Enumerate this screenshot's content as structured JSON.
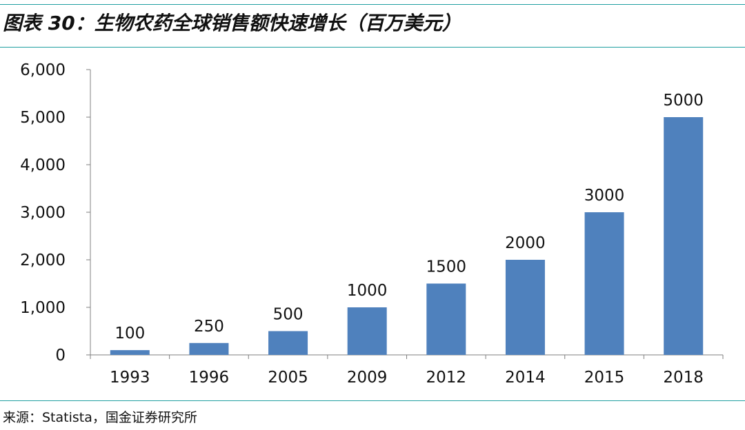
{
  "header": {
    "title": "图表 30：生物农药全球销售额快速增长（百万美元）"
  },
  "footer": {
    "source": "来源：Statista，国金证券研究所"
  },
  "colors": {
    "bar": "#4f81bd",
    "rule": "#1f9fa0",
    "axis": "#7f7f7f"
  },
  "chart_data": {
    "type": "bar",
    "title": "图表 30：生物农药全球销售额快速增长（百万美元）",
    "categories": [
      "1993",
      "1996",
      "2005",
      "2009",
      "2012",
      "2014",
      "2015",
      "2018"
    ],
    "values": [
      100,
      250,
      500,
      1000,
      1500,
      2000,
      3000,
      5000
    ],
    "data_labels": [
      "100",
      "250",
      "500",
      "1000",
      "1500",
      "2000",
      "3000",
      "5000"
    ],
    "ylim": [
      0,
      6000
    ],
    "yticks": [
      0,
      1000,
      2000,
      3000,
      4000,
      5000,
      6000
    ],
    "ytick_labels": [
      "0",
      "1,000",
      "2,000",
      "3,000",
      "4,000",
      "5,000",
      "6,000"
    ],
    "xlabel": "",
    "ylabel": "",
    "grid": false,
    "legend": "none"
  }
}
